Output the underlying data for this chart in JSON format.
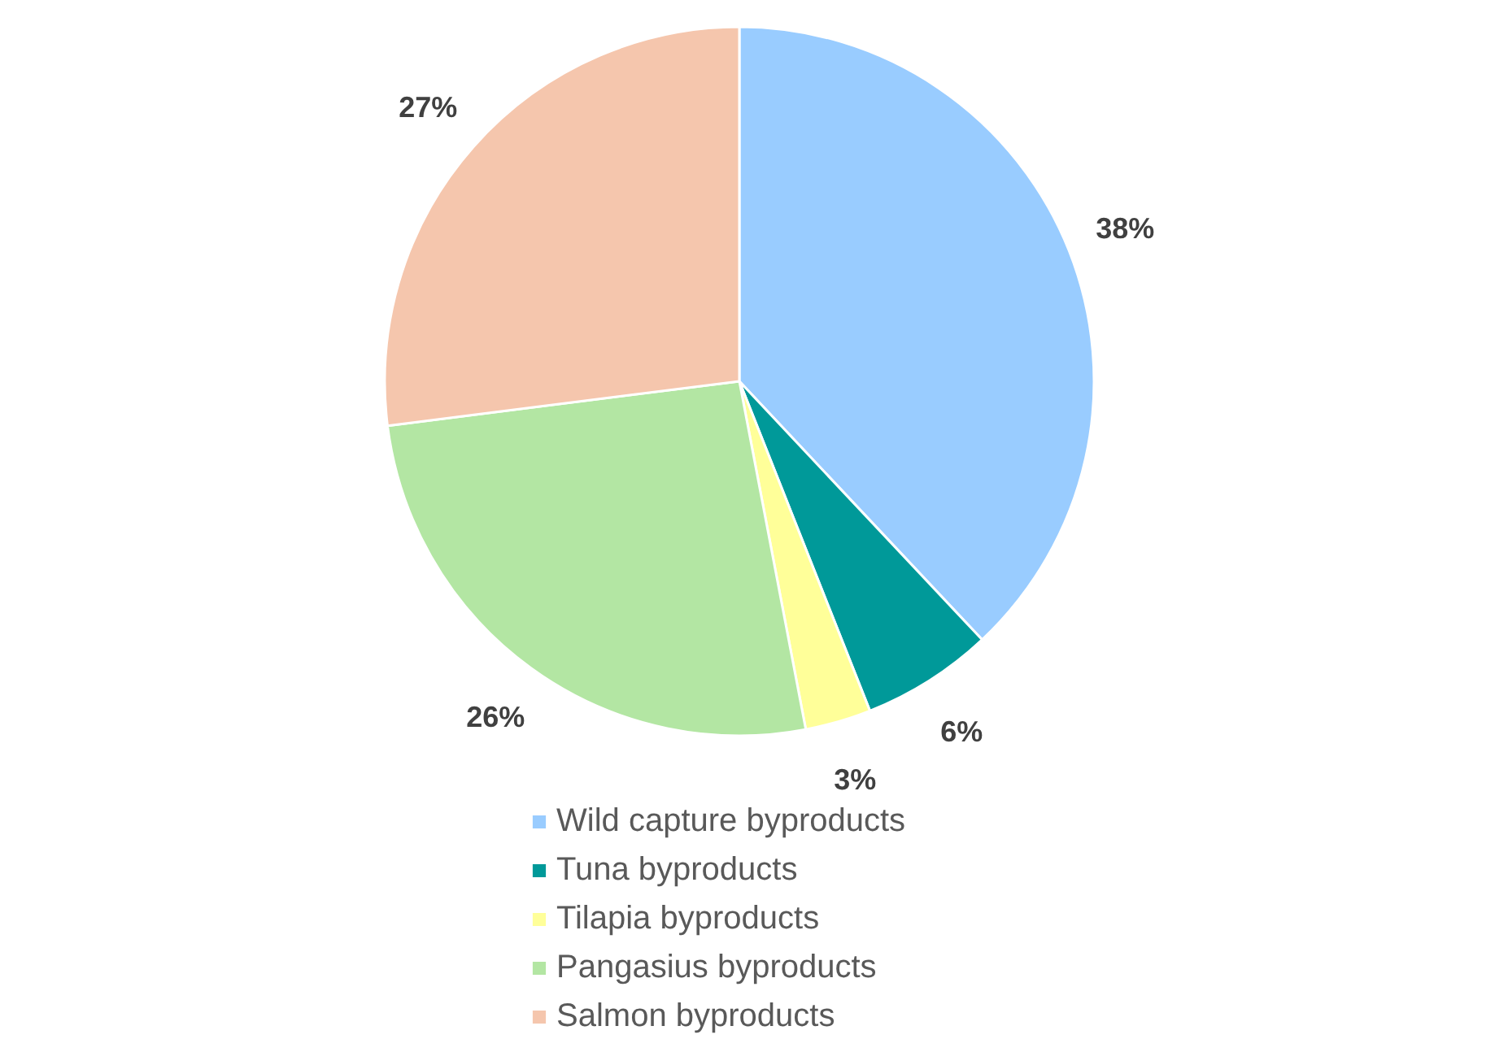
{
  "chart_data": {
    "type": "pie",
    "categories": [
      "Wild capture byproducts",
      "Tuna byproducts",
      "Tilapia byproducts",
      "Pangasius byproducts",
      "Salmon byproducts"
    ],
    "values": [
      38,
      6,
      3,
      26,
      27
    ],
    "colors": [
      "#99ccff",
      "#009999",
      "#ffff99",
      "#b3e6a3",
      "#f5c6ad"
    ],
    "value_labels": [
      "38%",
      "6%",
      "3%",
      "26%",
      "27%"
    ],
    "legend": "bottom"
  }
}
